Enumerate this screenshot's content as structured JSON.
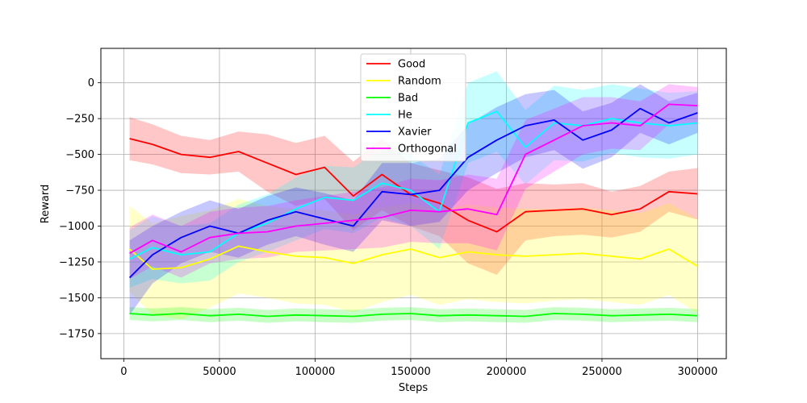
{
  "chart_data": {
    "type": "line",
    "title": "",
    "xlabel": "Steps",
    "ylabel": "Reward",
    "xlim": [
      -12000,
      315000
    ],
    "ylim": [
      -1925,
      240
    ],
    "grid": true,
    "legend_position": "top-center",
    "x_ticks": [
      0,
      50000,
      100000,
      150000,
      200000,
      250000,
      300000
    ],
    "x_tick_labels": [
      "0",
      "50000",
      "100000",
      "150000",
      "200000",
      "250000",
      "300000"
    ],
    "y_ticks": [
      0,
      -250,
      -500,
      -750,
      -1000,
      -1250,
      -1500,
      -1750
    ],
    "y_tick_labels": [
      "0",
      "−250",
      "−500",
      "−750",
      "−1000",
      "−1250",
      "−1500",
      "−1750"
    ],
    "x": [
      3000,
      15000,
      30000,
      45000,
      60000,
      75000,
      90000,
      105000,
      120000,
      135000,
      150000,
      165000,
      180000,
      195000,
      210000,
      225000,
      240000,
      255000,
      270000,
      285000,
      300000
    ],
    "series": [
      {
        "name": "Good",
        "color": "#ff0000",
        "values": [
          -390,
          -430,
          -500,
          -520,
          -480,
          -560,
          -640,
          -590,
          -790,
          -640,
          -780,
          -840,
          -960,
          -1040,
          -900,
          -890,
          -880,
          -920,
          -880,
          -760,
          -775
        ],
        "band": [
          150,
          140,
          130,
          120,
          140,
          200,
          220,
          220,
          240,
          250,
          220,
          230,
          300,
          300,
          200,
          180,
          180,
          160,
          160,
          140,
          180
        ]
      },
      {
        "name": "Random",
        "color": "#ffff00",
        "values": [
          -1160,
          -1300,
          -1290,
          -1230,
          -1140,
          -1180,
          -1210,
          -1220,
          -1260,
          -1200,
          -1160,
          -1220,
          -1180,
          -1200,
          -1210,
          -1200,
          -1190,
          -1210,
          -1230,
          -1160,
          -1280
        ],
        "band": [
          300,
          320,
          360,
          340,
          330,
          320,
          330,
          330,
          340,
          330,
          320,
          330,
          330,
          330,
          330,
          320,
          320,
          320,
          320,
          320,
          330
        ]
      },
      {
        "name": "Bad",
        "color": "#00ff00",
        "values": [
          -1610,
          -1620,
          -1610,
          -1625,
          -1615,
          -1630,
          -1620,
          -1625,
          -1630,
          -1615,
          -1610,
          -1625,
          -1620,
          -1625,
          -1630,
          -1610,
          -1615,
          -1625,
          -1620,
          -1615,
          -1625
        ],
        "band": [
          45,
          45,
          45,
          45,
          45,
          45,
          45,
          45,
          45,
          45,
          45,
          45,
          45,
          45,
          45,
          45,
          45,
          45,
          45,
          45,
          45
        ]
      },
      {
        "name": "He",
        "color": "#00ffff",
        "values": [
          -1230,
          -1150,
          -1200,
          -1180,
          -1050,
          -980,
          -880,
          -800,
          -820,
          -700,
          -750,
          -900,
          -280,
          -200,
          -450,
          -280,
          -300,
          -250,
          -280,
          -300,
          -280
        ],
        "band": [
          200,
          220,
          200,
          200,
          200,
          200,
          220,
          220,
          230,
          240,
          250,
          260,
          280,
          280,
          260,
          260,
          250,
          240,
          240,
          230,
          220
        ]
      },
      {
        "name": "Xavier",
        "color": "#0000ff",
        "values": [
          -1360,
          -1200,
          -1080,
          -1000,
          -1050,
          -960,
          -900,
          -950,
          -1000,
          -760,
          -780,
          -750,
          -520,
          -400,
          -300,
          -260,
          -400,
          -330,
          -180,
          -280,
          -210
        ],
        "band": [
          260,
          200,
          180,
          180,
          170,
          170,
          170,
          180,
          180,
          200,
          220,
          220,
          230,
          230,
          220,
          210,
          200,
          190,
          170,
          150,
          140
        ]
      },
      {
        "name": "Orthogonal",
        "color": "#ff00ff",
        "values": [
          -1190,
          -1100,
          -1180,
          -1080,
          -1050,
          -1040,
          -1000,
          -980,
          -960,
          -940,
          -890,
          -900,
          -880,
          -920,
          -500,
          -400,
          -300,
          -280,
          -300,
          -150,
          -160
        ],
        "band": [
          180,
          180,
          180,
          180,
          180,
          180,
          180,
          190,
          200,
          210,
          220,
          220,
          240,
          250,
          240,
          220,
          200,
          180,
          170,
          140,
          130
        ]
      }
    ]
  }
}
